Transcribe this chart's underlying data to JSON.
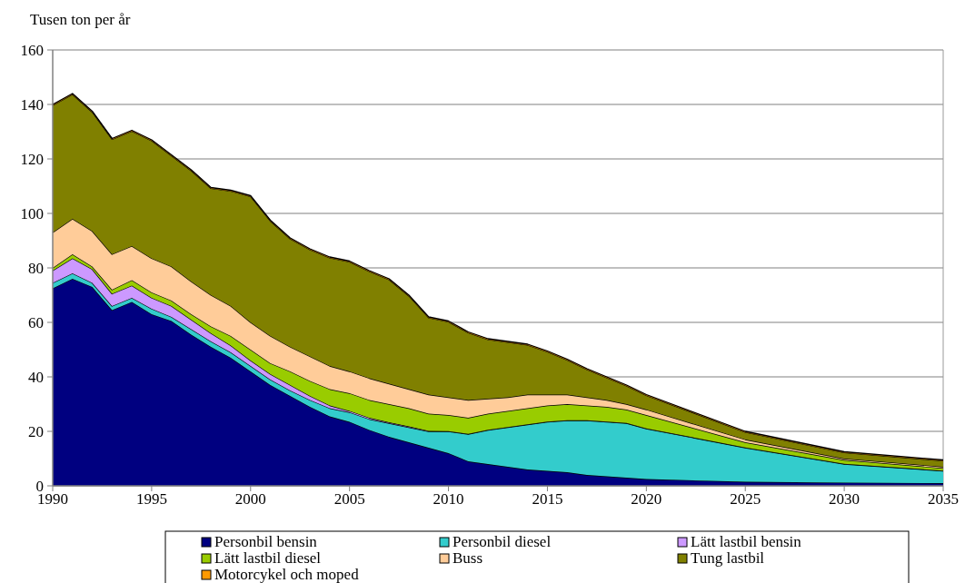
{
  "chart_data": {
    "type": "area",
    "stacked": true,
    "ylabel": "Tusen ton per år",
    "x": [
      1990,
      1991,
      1992,
      1993,
      1994,
      1995,
      1996,
      1997,
      1998,
      1999,
      2000,
      2001,
      2002,
      2003,
      2004,
      2005,
      2006,
      2007,
      2008,
      2009,
      2010,
      2011,
      2012,
      2013,
      2014,
      2015,
      2016,
      2017,
      2018,
      2019,
      2020,
      2025,
      2030,
      2035
    ],
    "xlim": [
      1990,
      2035
    ],
    "xticks": [
      1990,
      1995,
      2000,
      2005,
      2010,
      2015,
      2020,
      2025,
      2030,
      2035
    ],
    "ylim": [
      0,
      160
    ],
    "yticks": [
      0,
      20,
      40,
      60,
      80,
      100,
      120,
      140,
      160
    ],
    "grid": "y",
    "legend": "bottom",
    "series": [
      {
        "name": "Personbil bensin",
        "color": "#000080",
        "values": [
          72.5,
          76,
          73,
          64.5,
          67.5,
          63,
          60.5,
          55.5,
          51,
          47,
          42,
          37,
          33,
          29,
          25.5,
          23.5,
          20.5,
          18,
          16,
          14,
          12,
          9,
          8,
          7,
          6,
          5.5,
          5,
          4,
          3.5,
          3,
          2.5,
          1.5,
          1.2,
          1
        ]
      },
      {
        "name": "Personbil diesel",
        "color": "#33cccc",
        "values": [
          2,
          2,
          1.5,
          1.5,
          1.5,
          2,
          1.5,
          2,
          2,
          2,
          2,
          2,
          2,
          2.5,
          3,
          3.5,
          4,
          5,
          5.5,
          6,
          8,
          10,
          12.5,
          14.5,
          16.5,
          18,
          19,
          20,
          20,
          20,
          18.5,
          12.5,
          6.8,
          4.5
        ]
      },
      {
        "name": "Lätt lastbil bensin",
        "color": "#cc99ff",
        "values": [
          4.5,
          5.5,
          5,
          4.5,
          4.5,
          4,
          4,
          3.5,
          3,
          2.5,
          2,
          2,
          2,
          1.5,
          1,
          0.5,
          0.5,
          0.3,
          0.3,
          0.2,
          0.1,
          0.1,
          0.1,
          0.1,
          0.1,
          0.1,
          0.1,
          0.1,
          0.1,
          0.1,
          0.1,
          0.1,
          0.1,
          0.1
        ]
      },
      {
        "name": "Lätt lastbil diesel",
        "color": "#99cc00",
        "values": [
          1,
          1.5,
          1,
          1.5,
          2,
          2,
          2,
          2,
          2.5,
          3.5,
          4,
          4,
          5,
          5.5,
          6,
          6.5,
          6.5,
          6.7,
          6.7,
          6.3,
          5.9,
          5.9,
          5.9,
          5.9,
          5.9,
          5.9,
          5.9,
          5.4,
          5.4,
          4.9,
          4.9,
          1.9,
          1.4,
          0.9
        ]
      },
      {
        "name": "Buss",
        "color": "#ffcc99",
        "values": [
          13,
          13,
          13,
          13,
          12.5,
          12.5,
          12.5,
          12,
          11.5,
          11,
          10,
          10,
          9,
          9,
          8.5,
          8,
          8,
          7.5,
          7,
          7,
          6.5,
          6.5,
          5.5,
          5,
          5,
          4,
          3.5,
          3,
          2.5,
          2,
          2,
          1,
          0.5,
          0.5
        ]
      },
      {
        "name": "Tung lastbil",
        "color": "#808000",
        "values": [
          46.7,
          45.7,
          43.7,
          42.2,
          42.2,
          43.2,
          40.7,
          40.7,
          39.2,
          42.2,
          46.2,
          42.2,
          39.7,
          39.2,
          39.7,
          40.2,
          39.2,
          38.2,
          34.2,
          28.2,
          27.7,
          24.7,
          21.7,
          20.2,
          18.2,
          15.7,
          12.7,
          10.2,
          8.2,
          6.7,
          5.2,
          2.7,
          2.2,
          2.2
        ]
      },
      {
        "name": "Motorcykel och moped",
        "color": "#ff9900",
        "values": [
          0.3,
          0.3,
          0.3,
          0.3,
          0.3,
          0.3,
          0.3,
          0.3,
          0.3,
          0.3,
          0.3,
          0.3,
          0.3,
          0.3,
          0.3,
          0.3,
          0.3,
          0.3,
          0.3,
          0.3,
          0.3,
          0.3,
          0.3,
          0.3,
          0.3,
          0.3,
          0.3,
          0.3,
          0.3,
          0.3,
          0.3,
          0.3,
          0.3,
          0.3
        ]
      }
    ]
  }
}
